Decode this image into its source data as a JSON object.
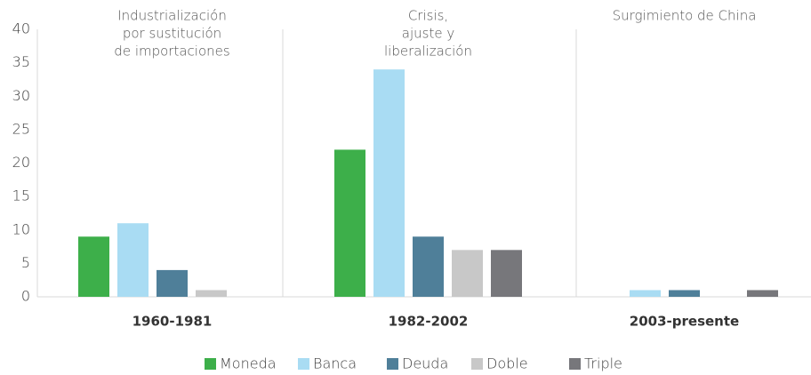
{
  "chart_data": {
    "type": "bar",
    "categories": [
      "1960-1981",
      "1982-2002",
      "2003-presente"
    ],
    "annotations": [
      [
        "Industrialización",
        "por sustitución",
        "de importaciones"
      ],
      [
        "Crisis,",
        "ajuste y",
        "liberalización"
      ],
      [
        "Surgimiento de China"
      ]
    ],
    "series": [
      {
        "name": "Moneda",
        "color": "#3daf4a",
        "values": [
          9,
          22,
          0
        ]
      },
      {
        "name": "Banca",
        "color": "#a9dcf3",
        "values": [
          11,
          34,
          1
        ]
      },
      {
        "name": "Deuda",
        "color": "#4f7f99",
        "values": [
          4,
          9,
          1
        ]
      },
      {
        "name": "Doble",
        "color": "#c8c8c8",
        "values": [
          1,
          7,
          0
        ]
      },
      {
        "name": "Triple",
        "color": "#77777b",
        "values": [
          0,
          7,
          1
        ]
      }
    ],
    "ylim": [
      0,
      40
    ],
    "yticks": [
      0,
      5,
      10,
      15,
      20,
      25,
      30,
      35,
      40
    ],
    "grid": false,
    "legend": "bottom"
  }
}
